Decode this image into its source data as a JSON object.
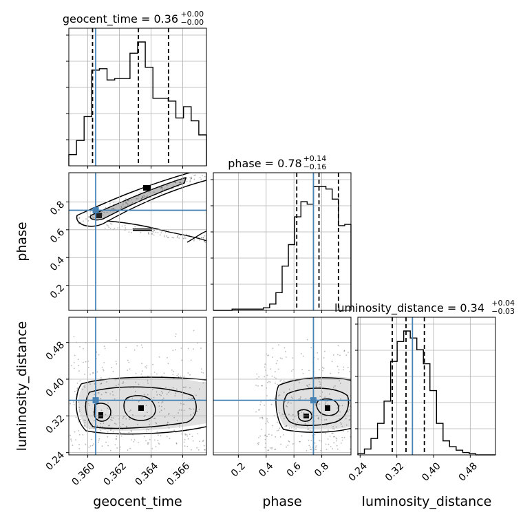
{
  "chart_data": {
    "type": "corner",
    "grid": true,
    "truth_color": "#4682b4",
    "parameters": [
      "geocent_time",
      "phase",
      "luminosity_distance"
    ],
    "truths": {
      "geocent_time": 0.3605,
      "phase": 0.74,
      "luminosity_distance": 0.354
    },
    "ranges": {
      "geocent_time": [
        0.3588,
        0.3675
      ],
      "phase": [
        0.02,
        1.01
      ],
      "luminosity_distance": [
        0.235,
        0.535
      ]
    },
    "ticks": {
      "geocent_time": [
        "0.360",
        "0.362",
        "0.364",
        "0.366"
      ],
      "phase_y": [
        "0.2",
        "0.4",
        "0.6",
        "0.8"
      ],
      "phase_x": [
        "0.2",
        "0.4",
        "0.6",
        "0.8"
      ],
      "luminosity_distance_y": [
        "0.24",
        "0.32",
        "0.40",
        "0.48"
      ],
      "luminosity_distance_x": [
        "0.24",
        "0.32",
        "0.40",
        "0.48"
      ]
    },
    "titles": [
      {
        "param": "geocent_time",
        "main": "geocent_time = 0.36",
        "sup": "+0.00",
        "sub": "−0.00"
      },
      {
        "param": "phase",
        "main": "phase = 0.78",
        "sup": "+0.14",
        "sub": "−0.16"
      },
      {
        "param": "luminosity_distance",
        "main": "luminosity_distance = 0.34",
        "sup": "+0.04",
        "sub": "−0.03"
      }
    ],
    "axis_labels": {
      "x": [
        "geocent_time",
        "phase",
        "luminosity_distance"
      ],
      "y": [
        "phase",
        "luminosity_distance"
      ]
    },
    "quantiles": {
      "geocent_time": [
        0.3603,
        0.3632,
        0.3651
      ],
      "phase": [
        0.62,
        0.78,
        0.92
      ],
      "luminosity_distance": [
        0.31,
        0.34,
        0.38
      ]
    },
    "histograms": {
      "geocent_time": {
        "edges": [
          0.3588,
          0.3675
        ],
        "counts": [
          8,
          18,
          35,
          68,
          69,
          61,
          62,
          62,
          80,
          88,
          70,
          48,
          48,
          46,
          34,
          42,
          32,
          22
        ]
      },
      "phase": {
        "edges": [
          0.02,
          1.01
        ],
        "counts": [
          0,
          0,
          0,
          1,
          1,
          1,
          1,
          1,
          2,
          5,
          14,
          35,
          52,
          74,
          86,
          84,
          98,
          98,
          96,
          88,
          67,
          68
        ]
      },
      "luminosity_distance": {
        "edges": [
          0.235,
          0.535
        ],
        "counts": [
          1,
          5,
          14,
          27,
          46,
          80,
          97,
          106,
          100,
          90,
          78,
          55,
          27,
          12,
          7,
          4,
          2,
          1,
          0,
          0,
          0
        ]
      }
    }
  }
}
